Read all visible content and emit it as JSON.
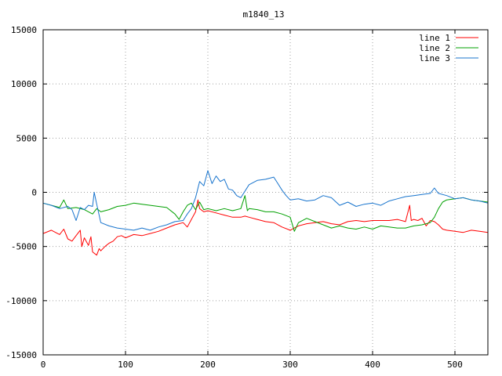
{
  "chart_data": {
    "type": "line",
    "title": "m1840_13",
    "xlabel": "",
    "ylabel": "",
    "xlim": [
      0,
      540
    ],
    "ylim": [
      -15000,
      15000
    ],
    "xticks": [
      0,
      100,
      200,
      300,
      400,
      500
    ],
    "yticks": [
      -15000,
      -10000,
      -5000,
      0,
      5000,
      10000,
      15000
    ],
    "grid": true,
    "legend_position": "top-right",
    "series": [
      {
        "name": "line 1",
        "color": "#ff0000",
        "x": [
          0,
          10,
          20,
          25,
          30,
          35,
          40,
          45,
          47,
          50,
          55,
          58,
          60,
          65,
          68,
          70,
          75,
          80,
          85,
          90,
          95,
          100,
          110,
          120,
          130,
          140,
          150,
          160,
          170,
          175,
          180,
          185,
          188,
          190,
          195,
          200,
          210,
          220,
          230,
          240,
          245,
          250,
          260,
          270,
          280,
          290,
          300,
          305,
          310,
          320,
          330,
          340,
          350,
          360,
          370,
          380,
          390,
          400,
          410,
          420,
          430,
          440,
          445,
          447,
          450,
          455,
          460,
          465,
          470,
          475,
          480,
          485,
          490,
          500,
          510,
          520,
          530,
          540
        ],
        "y": [
          -3800,
          -3500,
          -3900,
          -3400,
          -4300,
          -4500,
          -4000,
          -3500,
          -5000,
          -4200,
          -4900,
          -4100,
          -5500,
          -5800,
          -5200,
          -5400,
          -5000,
          -4700,
          -4500,
          -4100,
          -4000,
          -4200,
          -3900,
          -4000,
          -3800,
          -3600,
          -3300,
          -3000,
          -2800,
          -3200,
          -2500,
          -1800,
          -700,
          -1500,
          -1800,
          -1700,
          -1900,
          -2100,
          -2300,
          -2300,
          -2200,
          -2300,
          -2500,
          -2700,
          -2800,
          -3200,
          -3500,
          -3300,
          -3100,
          -2900,
          -2800,
          -2700,
          -2900,
          -3000,
          -2700,
          -2600,
          -2700,
          -2600,
          -2600,
          -2600,
          -2500,
          -2700,
          -1200,
          -2600,
          -2500,
          -2600,
          -2400,
          -3100,
          -2600,
          -2700,
          -3000,
          -3400,
          -3500,
          -3600,
          -3700,
          -3500,
          -3600,
          -3700
        ]
      },
      {
        "name": "line 2",
        "color": "#00a000",
        "x": [
          0,
          10,
          20,
          25,
          30,
          40,
          50,
          60,
          65,
          70,
          80,
          90,
          100,
          110,
          120,
          130,
          140,
          150,
          160,
          165,
          170,
          175,
          180,
          185,
          190,
          195,
          200,
          210,
          220,
          230,
          240,
          245,
          248,
          250,
          260,
          270,
          280,
          290,
          300,
          305,
          310,
          320,
          330,
          340,
          350,
          360,
          370,
          380,
          390,
          400,
          410,
          420,
          430,
          440,
          450,
          460,
          470,
          475,
          480,
          485,
          490,
          500,
          510,
          520,
          530,
          540
        ],
        "y": [
          -1000,
          -1200,
          -1400,
          -700,
          -1500,
          -1400,
          -1600,
          -2000,
          -1500,
          -1800,
          -1600,
          -1300,
          -1200,
          -1000,
          -1100,
          -1200,
          -1300,
          -1400,
          -2000,
          -2500,
          -1800,
          -1200,
          -1000,
          -1600,
          -900,
          -1600,
          -1500,
          -1700,
          -1500,
          -1700,
          -1500,
          -300,
          -1700,
          -1500,
          -1600,
          -1800,
          -1800,
          -2000,
          -2300,
          -3600,
          -2800,
          -2400,
          -2700,
          -3000,
          -3300,
          -3100,
          -3300,
          -3400,
          -3200,
          -3400,
          -3100,
          -3200,
          -3300,
          -3300,
          -3100,
          -3000,
          -2800,
          -2300,
          -1500,
          -900,
          -700,
          -600,
          -500,
          -700,
          -800,
          -900
        ]
      },
      {
        "name": "line 3",
        "color": "#1874cd",
        "x": [
          0,
          10,
          20,
          30,
          35,
          40,
          45,
          50,
          55,
          60,
          62,
          65,
          70,
          80,
          90,
          100,
          110,
          120,
          130,
          140,
          150,
          160,
          170,
          175,
          180,
          185,
          190,
          195,
          200,
          205,
          210,
          215,
          220,
          225,
          230,
          235,
          240,
          250,
          260,
          270,
          280,
          285,
          290,
          295,
          300,
          310,
          320,
          330,
          340,
          350,
          360,
          370,
          380,
          390,
          400,
          410,
          420,
          430,
          440,
          450,
          460,
          470,
          475,
          480,
          490,
          500,
          510,
          520,
          530,
          540
        ],
        "y": [
          -1000,
          -1200,
          -1500,
          -1300,
          -1600,
          -2600,
          -1400,
          -1600,
          -1200,
          -1300,
          0,
          -1100,
          -2800,
          -3100,
          -3300,
          -3400,
          -3500,
          -3300,
          -3500,
          -3200,
          -3000,
          -2700,
          -2600,
          -2000,
          -1500,
          -500,
          1000,
          600,
          2000,
          800,
          1500,
          1000,
          1200,
          300,
          200,
          -300,
          -500,
          700,
          1100,
          1200,
          1400,
          800,
          200,
          -300,
          -700,
          -600,
          -800,
          -700,
          -300,
          -500,
          -1200,
          -900,
          -1300,
          -1100,
          -1000,
          -1200,
          -800,
          -600,
          -400,
          -300,
          -200,
          -100,
          400,
          -100,
          -300,
          -600,
          -500,
          -700,
          -800,
          -1000
        ]
      }
    ]
  }
}
